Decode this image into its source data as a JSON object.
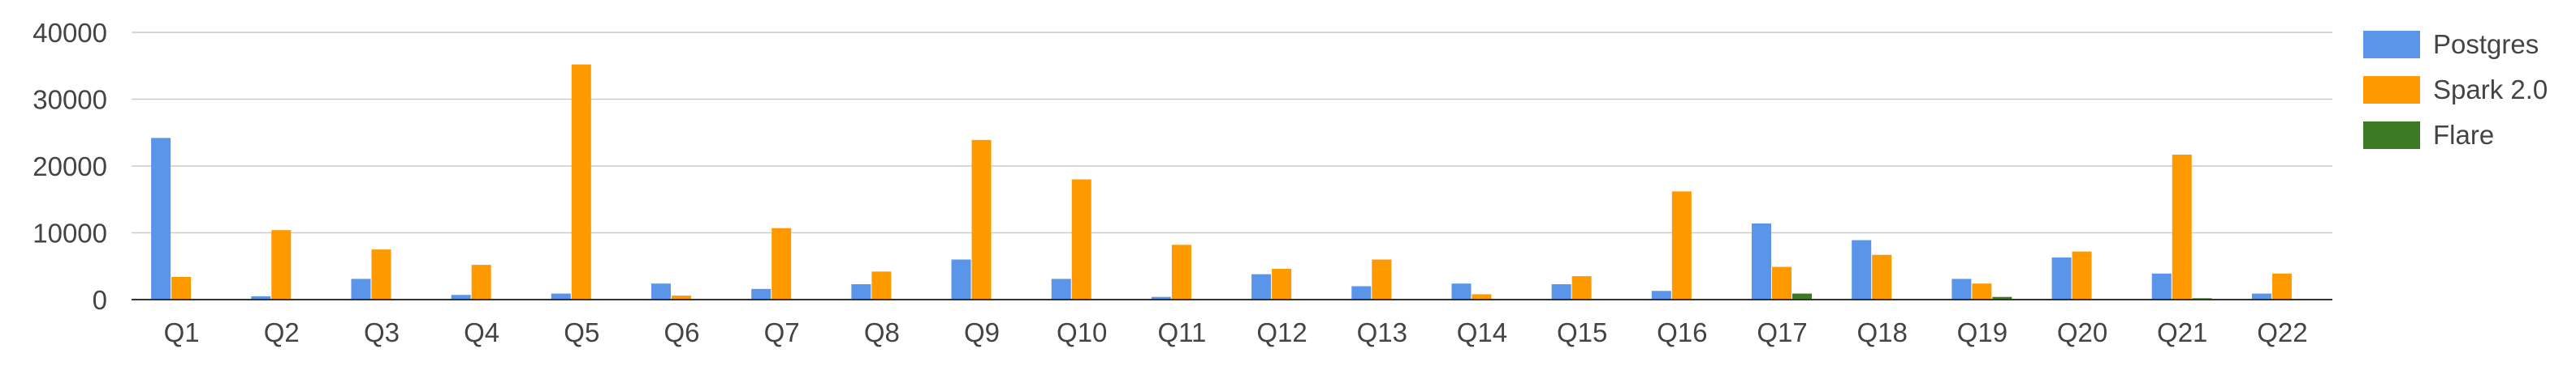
{
  "chart_data": {
    "type": "bar",
    "title": "",
    "xlabel": "",
    "ylabel": "",
    "ylim": [
      0,
      40000
    ],
    "yticks": [
      "0",
      "10000",
      "20000",
      "30000",
      "40000"
    ],
    "ytick_values": [
      0,
      10000,
      20000,
      30000,
      40000
    ],
    "grid": true,
    "legend_position": "right",
    "categories": [
      "Q1",
      "Q2",
      "Q3",
      "Q4",
      "Q5",
      "Q6",
      "Q7",
      "Q8",
      "Q9",
      "Q10",
      "Q11",
      "Q12",
      "Q13",
      "Q14",
      "Q15",
      "Q16",
      "Q17",
      "Q18",
      "Q19",
      "Q20",
      "Q21",
      "Q22"
    ],
    "series": [
      {
        "name": "Postgres",
        "color": "#5b95ea",
        "values": [
          24200,
          500,
          3100,
          700,
          900,
          2400,
          1600,
          2300,
          6000,
          3100,
          400,
          3800,
          2000,
          2400,
          2300,
          1300,
          11400,
          8900,
          3100,
          6300,
          3900,
          900
        ]
      },
      {
        "name": "Spark 2.0",
        "color": "#ff9900",
        "values": [
          3400,
          10400,
          7500,
          5200,
          35200,
          600,
          10700,
          4200,
          23900,
          18000,
          8200,
          4600,
          6000,
          800,
          3500,
          16200,
          4900,
          6700,
          2400,
          7200,
          21700,
          3900
        ]
      },
      {
        "name": "Flare",
        "color": "#3b7a22",
        "values": [
          60,
          40,
          40,
          40,
          40,
          40,
          40,
          40,
          40,
          40,
          40,
          40,
          40,
          40,
          40,
          40,
          900,
          40,
          400,
          40,
          200,
          40
        ]
      }
    ]
  }
}
